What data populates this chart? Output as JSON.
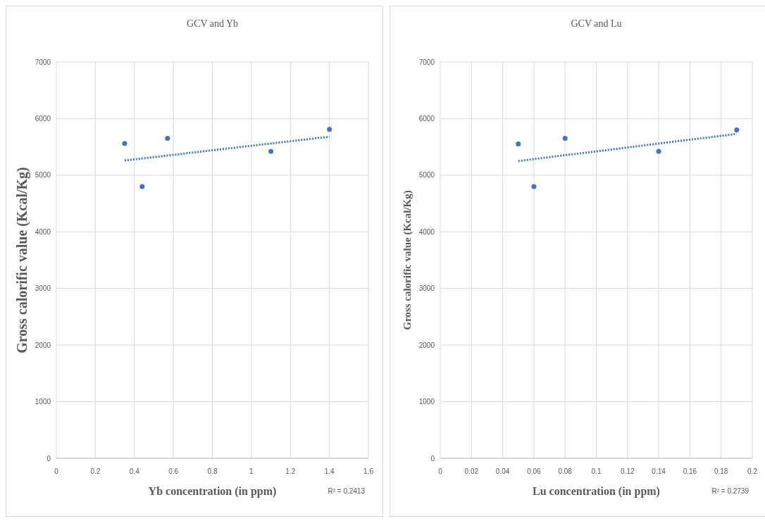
{
  "chart_data": [
    {
      "type": "scatter",
      "title": "GCV and Yb",
      "xlabel": "Yb concentration (in ppm)",
      "ylabel": "Gross calorific value (Kcal/Kg)",
      "annotations": [
        "R² = 0.2413"
      ],
      "xlim": [
        0,
        1.6
      ],
      "xticks": [
        0,
        0.2,
        0.4,
        0.6,
        0.8,
        1,
        1.2,
        1.4,
        1.6
      ],
      "ylim": [
        0,
        7000
      ],
      "yticks": [
        0,
        1000,
        2000,
        3000,
        4000,
        5000,
        6000,
        7000
      ],
      "grid": true,
      "marker": "circle",
      "series": [
        {
          "color": "#4472c4",
          "x": [
            0.35,
            0.44,
            0.57,
            1.1,
            1.4
          ],
          "values": [
            5560,
            4800,
            5650,
            5420,
            5810
          ]
        },
        {
          "type": "line",
          "line_style": "dotted",
          "marker": "none",
          "color": "#4472c4",
          "x": [
            0.35,
            1.4
          ],
          "values": [
            5260,
            5680
          ]
        }
      ]
    },
    {
      "type": "scatter",
      "title": "GCV and Lu",
      "xlabel": "Lu concentration (in ppm)",
      "ylabel": "Gross calorific value (Kcal/Kg)",
      "annotations": [
        "R² = 0.2739"
      ],
      "xlim": [
        0,
        0.2
      ],
      "xticks": [
        0,
        0.02,
        0.04,
        0.06,
        0.08,
        0.1,
        0.12,
        0.14,
        0.16,
        0.18,
        0.2
      ],
      "ylim": [
        0,
        7000
      ],
      "yticks": [
        0,
        1000,
        2000,
        3000,
        4000,
        5000,
        6000,
        7000
      ],
      "grid": true,
      "marker": "circle",
      "series": [
        {
          "color": "#4472c4",
          "x": [
            0.05,
            0.06,
            0.08,
            0.14,
            0.19
          ],
          "values": [
            5550,
            4800,
            5650,
            5420,
            5800
          ]
        },
        {
          "type": "line",
          "line_style": "dotted",
          "marker": "none",
          "color": "#4472c4",
          "x": [
            0.05,
            0.19
          ],
          "values": [
            5250,
            5730
          ]
        }
      ]
    }
  ]
}
